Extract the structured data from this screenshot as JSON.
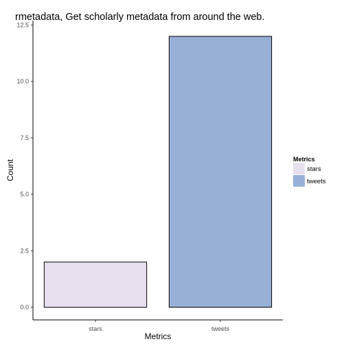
{
  "chart_data": {
    "type": "bar",
    "title": "rmetadata, Get scholarly metadata from around the web.",
    "xlabel": "Metrics",
    "ylabel": "Count",
    "categories": [
      "stars",
      "tweets"
    ],
    "values": [
      2,
      12
    ],
    "ylim": [
      0,
      12.5
    ],
    "yticks": [
      "0.0",
      "2.5",
      "5.0",
      "7.5",
      "10.0",
      "12.5"
    ],
    "grid": false,
    "legend": {
      "title": "Metrics",
      "position": "right",
      "entries": [
        "stars",
        "tweets"
      ]
    },
    "colors": {
      "stars": "#e7e1ef",
      "tweets": "#98b0d6",
      "outline": "#000000"
    }
  }
}
